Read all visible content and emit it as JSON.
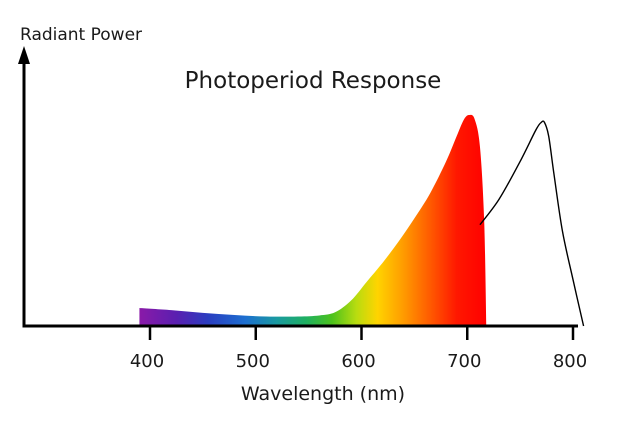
{
  "chart_data": {
    "type": "area",
    "title": "Photoperiod Response",
    "xlabel": "Wavelength (nm)",
    "ylabel": "Radiant Power",
    "xlim": [
      300,
      815
    ],
    "ylim": [
      0,
      1
    ],
    "x_ticks": [
      400,
      500,
      600,
      700,
      800
    ],
    "x_tick_labels": [
      "400",
      "500",
      "600",
      "700",
      "800"
    ],
    "grid": false,
    "legend": "none",
    "series": [
      {
        "name": "",
        "style": "spectrum-filled",
        "x": [
          390,
          420,
          450,
          480,
          510,
          540,
          560,
          575,
          590,
          605,
          620,
          635,
          650,
          665,
          680,
          690,
          697,
          702,
          707,
          712,
          716,
          718
        ],
        "y": [
          0.085,
          0.075,
          0.062,
          0.052,
          0.045,
          0.045,
          0.05,
          0.065,
          0.12,
          0.21,
          0.3,
          0.4,
          0.51,
          0.63,
          0.78,
          0.9,
          0.98,
          1.0,
          0.98,
          0.85,
          0.5,
          0.0
        ]
      },
      {
        "name": "",
        "style": "outline",
        "x": [
          712,
          730,
          750,
          765,
          770,
          773,
          777,
          782,
          790,
          800,
          810
        ],
        "y": [
          0.48,
          0.6,
          0.78,
          0.93,
          0.965,
          0.965,
          0.9,
          0.72,
          0.45,
          0.22,
          0.0
        ]
      }
    ]
  }
}
